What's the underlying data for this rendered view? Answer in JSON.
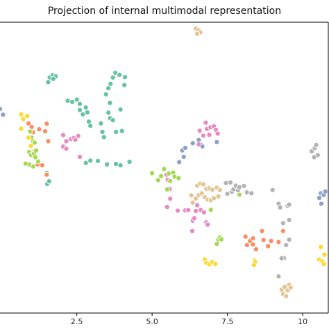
{
  "colors": {
    "teal": "#66c2a5",
    "orange": "#fc8d62",
    "blue": "#8da0cb",
    "pink": "#e78ac3",
    "lime": "#a6d854",
    "yellow": "#ffd92f",
    "tan": "#e5c494",
    "gray": "#b3b3b3"
  },
  "chart_data": {
    "type": "scatter",
    "title": "Projection of internal multimodal representation",
    "xlabel": "",
    "ylabel": "",
    "xlim": [
      -0.05,
      10.85
    ],
    "ylim": [
      0,
      100
    ],
    "xticks": [
      2.5,
      5.0,
      7.5,
      10.0
    ],
    "xtick_labels": [
      "2.5",
      "5.0",
      "7.5",
      "10"
    ],
    "grid": false,
    "legend": "none",
    "series": [
      {
        "color": "teal",
        "points": [
          [
            1.6,
            81.0
          ],
          [
            1.7,
            81.8
          ],
          [
            1.8,
            81.4
          ],
          [
            1.55,
            79.4
          ],
          [
            1.72,
            80.5
          ],
          [
            1.5,
            48.2
          ],
          [
            1.52,
            44.4
          ],
          [
            1.58,
            45.3
          ],
          [
            2.2,
            73.0
          ],
          [
            2.35,
            72.6
          ],
          [
            2.5,
            73.4
          ],
          [
            2.6,
            71.9
          ],
          [
            2.6,
            69.8
          ],
          [
            2.7,
            68.3
          ],
          [
            2.8,
            70.7
          ],
          [
            2.85,
            69.0
          ],
          [
            2.9,
            65.8
          ],
          [
            2.95,
            64.4
          ],
          [
            3.3,
            65.2
          ],
          [
            3.35,
            62.3
          ],
          [
            3.4,
            60.5
          ],
          [
            3.47,
            75.2
          ],
          [
            3.55,
            77.3
          ],
          [
            3.6,
            72.3
          ],
          [
            3.55,
            68.9
          ],
          [
            3.6,
            67.0
          ],
          [
            3.7,
            66.3
          ],
          [
            3.62,
            78.8
          ],
          [
            3.78,
            82.6
          ],
          [
            3.9,
            81.7
          ],
          [
            3.7,
            81.0
          ],
          [
            3.92,
            81.9
          ],
          [
            4.1,
            81.1
          ],
          [
            4.08,
            78.4
          ],
          [
            3.95,
            70.0
          ],
          [
            4.0,
            62.6
          ],
          [
            3.8,
            62.3
          ],
          [
            2.8,
            51.6
          ],
          [
            2.95,
            52.4
          ],
          [
            3.2,
            52.3
          ],
          [
            3.5,
            51.1
          ],
          [
            3.8,
            51.3
          ],
          [
            3.95,
            50.8
          ],
          [
            4.25,
            52.0
          ]
        ]
      },
      {
        "color": "orange",
        "points": [
          [
            0.9,
            65.2
          ],
          [
            1.0,
            64.0
          ],
          [
            1.05,
            62.2
          ],
          [
            1.25,
            63.2
          ],
          [
            1.5,
            65.1
          ],
          [
            1.45,
            62.5
          ],
          [
            1.55,
            59.1
          ],
          [
            1.1,
            55.7
          ],
          [
            1.2,
            52.3
          ],
          [
            1.35,
            50.8
          ],
          [
            1.5,
            47.6
          ],
          [
            1.2,
            51.1
          ],
          [
            8.1,
            26.3
          ],
          [
            8.15,
            23.4
          ],
          [
            8.25,
            24.8
          ],
          [
            8.35,
            25.7
          ],
          [
            8.45,
            21.9
          ],
          [
            8.35,
            23.6
          ],
          [
            8.65,
            28.2
          ],
          [
            8.7,
            25.1
          ],
          [
            8.85,
            23.0
          ],
          [
            8.95,
            24.8
          ],
          [
            9.2,
            24.4
          ],
          [
            9.35,
            28.2
          ]
        ]
      },
      {
        "color": "blue",
        "points": [
          [
            -0.05,
            70.2
          ],
          [
            0.05,
            68.2
          ],
          [
            5.9,
            51.9
          ],
          [
            6.0,
            55.9
          ],
          [
            6.05,
            53.7
          ],
          [
            6.1,
            56.8
          ],
          [
            6.35,
            58.4
          ],
          [
            6.55,
            59.5
          ],
          [
            6.62,
            57.9
          ],
          [
            6.67,
            57.3
          ],
          [
            7.15,
            58.8
          ],
          [
            10.6,
            41.2
          ],
          [
            10.7,
            40.6
          ],
          [
            10.75,
            41.8
          ],
          [
            10.62,
            37.6
          ],
          [
            10.55,
            39.6
          ]
        ]
      },
      {
        "color": "pink",
        "points": [
          [
            2.05,
            61.2
          ],
          [
            2.15,
            59.1
          ],
          [
            2.3,
            59.8
          ],
          [
            2.4,
            60.2
          ],
          [
            2.45,
            59.6
          ],
          [
            2.55,
            60.9
          ],
          [
            2.05,
            57.2
          ],
          [
            2.15,
            56.5
          ],
          [
            2.6,
            53.7
          ],
          [
            6.58,
            62.7
          ],
          [
            6.7,
            61.0
          ],
          [
            6.78,
            65.5
          ],
          [
            6.82,
            63.3
          ],
          [
            6.9,
            61.3
          ],
          [
            6.94,
            63.9
          ],
          [
            7.05,
            64.2
          ],
          [
            7.12,
            63.0
          ],
          [
            7.18,
            61.7
          ],
          [
            6.55,
            58.0
          ],
          [
            5.48,
            47.6
          ],
          [
            5.52,
            45.8
          ],
          [
            5.58,
            42.7
          ],
          [
            5.6,
            39.3
          ],
          [
            5.5,
            36.5
          ],
          [
            5.85,
            35.2
          ],
          [
            6.1,
            35.3
          ],
          [
            6.2,
            35.4
          ],
          [
            6.35,
            31.8
          ],
          [
            6.33,
            28.2
          ],
          [
            6.4,
            32.6
          ],
          [
            6.45,
            35.1
          ],
          [
            6.5,
            37.1
          ],
          [
            6.62,
            35.4
          ],
          [
            6.72,
            34.6
          ],
          [
            6.8,
            31.2
          ],
          [
            6.85,
            30.4
          ]
        ]
      },
      {
        "color": "lime",
        "points": [
          [
            0.95,
            62.4
          ],
          [
            1.0,
            60.3
          ],
          [
            1.05,
            59.1
          ],
          [
            1.1,
            58.6
          ],
          [
            0.92,
            55.4
          ],
          [
            0.98,
            54.4
          ],
          [
            1.08,
            54.8
          ],
          [
            1.15,
            55.9
          ],
          [
            1.22,
            52.1
          ],
          [
            1.12,
            53.6
          ],
          [
            1.05,
            50.4
          ],
          [
            0.92,
            51.1
          ],
          [
            0.8,
            51.4
          ],
          [
            5.0,
            48.1
          ],
          [
            5.2,
            45.7
          ],
          [
            5.3,
            47.1
          ],
          [
            5.4,
            49.5
          ],
          [
            5.55,
            48.0
          ],
          [
            5.7,
            48.3
          ],
          [
            5.6,
            45.4
          ],
          [
            5.75,
            46.9
          ],
          [
            5.88,
            46.4
          ],
          [
            5.5,
            42.5
          ],
          [
            7.15,
            23.8
          ],
          [
            7.2,
            25.3
          ],
          [
            7.25,
            26.0
          ],
          [
            7.3,
            25.4
          ],
          [
            6.95,
            35.5
          ],
          [
            7.9,
            40.7
          ]
        ]
      },
      {
        "color": "yellow",
        "points": [
          [
            0.65,
            68.3
          ],
          [
            0.72,
            66.7
          ],
          [
            0.85,
            67.7
          ],
          [
            0.65,
            63.4
          ],
          [
            0.9,
            60.3
          ],
          [
            0.98,
            57.5
          ],
          [
            6.75,
            18.4
          ],
          [
            6.8,
            17.2
          ],
          [
            6.9,
            16.8
          ],
          [
            7.0,
            17.5
          ],
          [
            7.1,
            16.9
          ],
          [
            8.4,
            18.1
          ],
          [
            8.42,
            17.6
          ],
          [
            8.38,
            16.5
          ],
          [
            10.55,
            18.4
          ],
          [
            10.65,
            17.8
          ],
          [
            10.72,
            20.1
          ],
          [
            10.6,
            22.7
          ],
          [
            10.7,
            16.9
          ]
        ]
      },
      {
        "color": "tan",
        "points": [
          [
            6.45,
            97.8
          ],
          [
            6.55,
            97.2
          ],
          [
            6.6,
            96.5
          ],
          [
            6.5,
            96.0
          ],
          [
            6.5,
            43.8
          ],
          [
            6.6,
            44.5
          ],
          [
            6.7,
            44.3
          ],
          [
            6.8,
            42.7
          ],
          [
            6.9,
            42.9
          ],
          [
            7.0,
            42.4
          ],
          [
            7.15,
            43.1
          ],
          [
            7.25,
            42.3
          ],
          [
            6.3,
            40.5
          ],
          [
            6.35,
            38.0
          ],
          [
            6.45,
            39.4
          ],
          [
            6.55,
            40.6
          ],
          [
            6.65,
            41.2
          ],
          [
            6.75,
            39.8
          ],
          [
            6.85,
            39.0
          ],
          [
            6.95,
            38.8
          ],
          [
            7.05,
            39.5
          ],
          [
            7.2,
            40.1
          ],
          [
            9.3,
            8.0
          ],
          [
            9.35,
            6.5
          ],
          [
            9.45,
            5.8
          ],
          [
            9.5,
            7.8
          ],
          [
            9.55,
            9.7
          ],
          [
            9.6,
            8.7
          ],
          [
            9.4,
            9.0
          ]
        ]
      },
      {
        "color": "gray",
        "points": [
          [
            9.0,
            42.3
          ],
          [
            7.5,
            41.0
          ],
          [
            7.45,
            44.7
          ],
          [
            7.6,
            44.9
          ],
          [
            7.65,
            41.7
          ],
          [
            7.7,
            42.5
          ],
          [
            7.78,
            43.8
          ],
          [
            7.85,
            42.2
          ],
          [
            7.9,
            43.3
          ],
          [
            8.05,
            43.7
          ],
          [
            8.15,
            41.5
          ],
          [
            8.3,
            41.2
          ],
          [
            9.2,
            37.6
          ],
          [
            9.25,
            36.3
          ],
          [
            9.5,
            36.8
          ],
          [
            9.55,
            37.3
          ],
          [
            9.38,
            18.9
          ],
          [
            9.45,
            23.4
          ],
          [
            9.55,
            25.2
          ],
          [
            9.3,
            18.8
          ],
          [
            9.55,
            32.0
          ],
          [
            9.35,
            30.9
          ],
          [
            9.2,
            12.6
          ],
          [
            10.3,
            55.6
          ],
          [
            10.4,
            56.7
          ],
          [
            10.45,
            57.8
          ],
          [
            10.5,
            54.3
          ],
          [
            10.38,
            53.6
          ]
        ]
      }
    ]
  }
}
